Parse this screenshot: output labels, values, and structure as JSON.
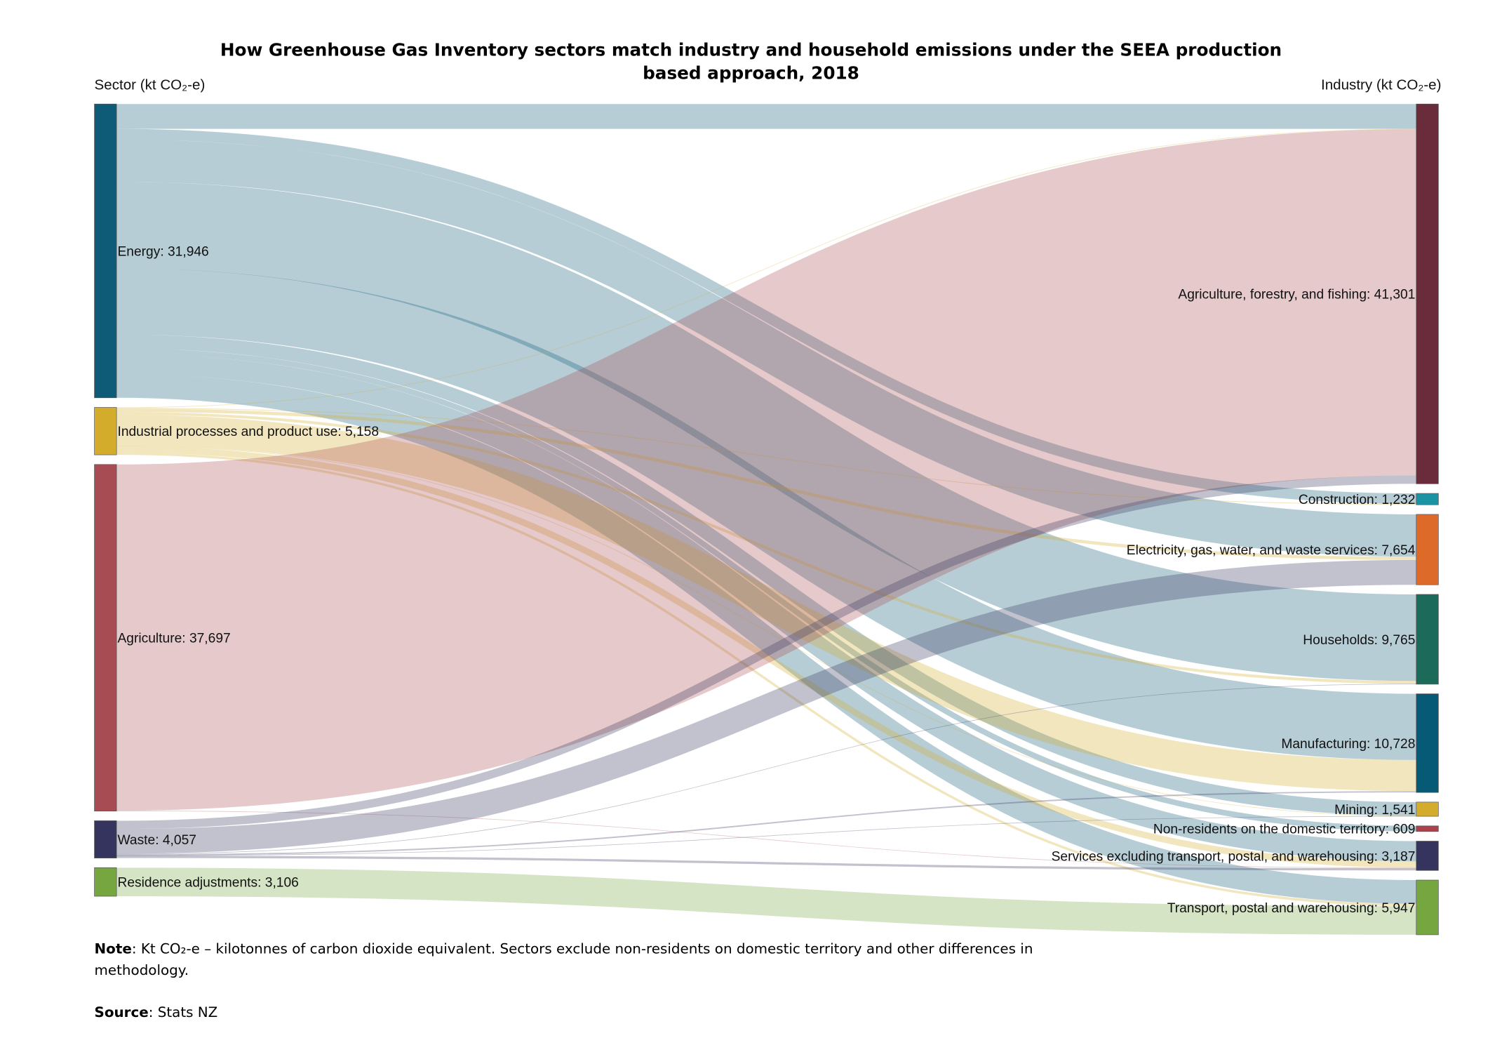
{
  "chart_data": {
    "type": "sankey",
    "title_line1": "How Greenhouse Gas Inventory sectors match industry and household emissions under the SEEA production",
    "title_line2": "based approach, 2018",
    "left_heading": "Sector (kt CO₂-e)",
    "right_heading": "Industry (kt CO₂-e)",
    "sources": [
      {
        "name": "Energy",
        "value": 31946,
        "label": "Energy: 31,946",
        "color": "#0e5b78"
      },
      {
        "name": "Industrial processes and product use",
        "value": 5158,
        "label": "Industrial processes and product use: 5,158",
        "color": "#d3ac2b"
      },
      {
        "name": "Agriculture",
        "value": 37697,
        "label": "Agriculture: 37,697",
        "color": "#a84c53"
      },
      {
        "name": "Waste",
        "value": 4057,
        "label": "Waste: 4,057",
        "color": "#35345e"
      },
      {
        "name": "Residence adjustments",
        "value": 3106,
        "label": "Residence adjustments: 3,106",
        "color": "#75a640"
      }
    ],
    "targets": [
      {
        "name": "Agriculture, forestry, and fishing",
        "value": 41301,
        "label": "Agriculture, forestry, and fishing: 41,301",
        "color": "#6a2c3a"
      },
      {
        "name": "Construction",
        "value": 1232,
        "label": "Construction: 1,232",
        "color": "#1a93a3"
      },
      {
        "name": "Electricity, gas, water, and waste services",
        "value": 7654,
        "label": "Electricity, gas, water, and waste services: 7,654",
        "color": "#de6a2a"
      },
      {
        "name": "Households",
        "value": 9765,
        "label": "Households: 9,765",
        "color": "#1c6b5a"
      },
      {
        "name": "Manufacturing",
        "value": 10728,
        "label": "Manufacturing: 10,728",
        "color": "#065a75"
      },
      {
        "name": "Mining",
        "value": 1541,
        "label": "Mining: 1,541",
        "color": "#d3ac2b"
      },
      {
        "name": "Non-residents on the domestic territory",
        "value": 609,
        "label": "Non-residents on the domestic territory: 609",
        "color": "#b0414b"
      },
      {
        "name": "Services excluding transport, postal, and warehousing",
        "value": 3187,
        "label": "Services excluding transport, postal, and warehousing: 3,187",
        "color": "#35345e"
      },
      {
        "name": "Transport, postal and warehousing",
        "value": 5947,
        "label": "Transport, postal and warehousing: 5,947",
        "color": "#75a640"
      }
    ],
    "links": [
      {
        "source": 0,
        "target": 0,
        "value": 2700
      },
      {
        "source": 0,
        "target": 1,
        "value": 1150
      },
      {
        "source": 0,
        "target": 2,
        "value": 4600
      },
      {
        "source": 0,
        "target": 3,
        "value": 9415
      },
      {
        "source": 0,
        "target": 4,
        "value": 7193
      },
      {
        "source": 0,
        "target": 5,
        "value": 1500
      },
      {
        "source": 0,
        "target": 6,
        "value": 609
      },
      {
        "source": 0,
        "target": 7,
        "value": 2200
      },
      {
        "source": 0,
        "target": 8,
        "value": 2579
      },
      {
        "source": 1,
        "target": 0,
        "value": 51
      },
      {
        "source": 1,
        "target": 1,
        "value": 82
      },
      {
        "source": 1,
        "target": 2,
        "value": 354
      },
      {
        "source": 1,
        "target": 3,
        "value": 300
      },
      {
        "source": 1,
        "target": 4,
        "value": 3385
      },
      {
        "source": 1,
        "target": 5,
        "value": 31
      },
      {
        "source": 1,
        "target": 7,
        "value": 693
      },
      {
        "source": 1,
        "target": 8,
        "value": 262
      },
      {
        "source": 2,
        "target": 0,
        "value": 37650
      },
      {
        "source": 2,
        "target": 7,
        "value": 47
      },
      {
        "source": 3,
        "target": 0,
        "value": 900
      },
      {
        "source": 3,
        "target": 2,
        "value": 2700
      },
      {
        "source": 3,
        "target": 3,
        "value": 50
      },
      {
        "source": 3,
        "target": 4,
        "value": 150
      },
      {
        "source": 3,
        "target": 5,
        "value": 10
      },
      {
        "source": 3,
        "target": 7,
        "value": 247
      },
      {
        "source": 4,
        "target": 8,
        "value": 3106
      }
    ]
  },
  "notes": {
    "note_label": "Note",
    "note_text_1": ": Kt CO₂-e – kilotonnes of carbon dioxide equivalent. Sectors exclude non-residents on domestic territory and other differences in",
    "note_text_2": "methodology.",
    "source_label": "Source",
    "source_text": ": Stats NZ"
  }
}
